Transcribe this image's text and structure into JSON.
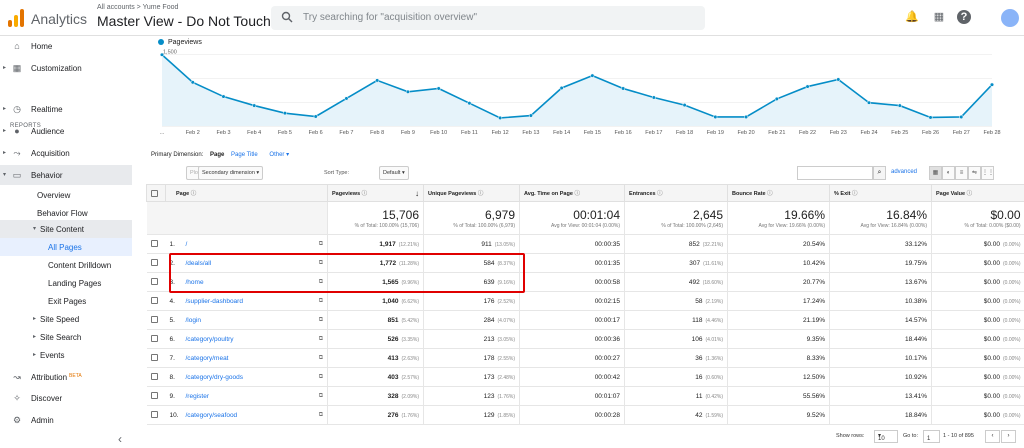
{
  "app": {
    "name": "Analytics",
    "breadcrumb": "All accounts > Yume Food",
    "view_name": "Master View - Do Not Touch"
  },
  "search": {
    "placeholder": "Try searching for \"acquisition overview\""
  },
  "topbar_icons": [
    "bell-icon",
    "apps-grid-icon",
    "help-icon",
    "avatar"
  ],
  "sidebar": {
    "items": [
      {
        "label": "Home",
        "icon": "home-icon"
      },
      {
        "label": "Customization",
        "icon": "customization-icon"
      }
    ],
    "reports_header": "REPORTS",
    "reports": [
      {
        "label": "Realtime",
        "icon": "clock-icon"
      },
      {
        "label": "Audience",
        "icon": "person-icon"
      },
      {
        "label": "Acquisition",
        "icon": "acquisition-icon"
      },
      {
        "label": "Behavior",
        "icon": "behavior-icon"
      }
    ],
    "behavior_children": [
      "Overview",
      "Behavior Flow",
      "Site Content"
    ],
    "site_content_children": [
      "All Pages",
      "Content Drilldown",
      "Landing Pages",
      "Exit Pages"
    ],
    "behavior_more": [
      "Site Speed",
      "Site Search",
      "Events"
    ],
    "bottom": [
      {
        "label": "Attribution",
        "badge": "BETA",
        "icon": "attribution-icon"
      },
      {
        "label": "Discover",
        "icon": "lightbulb-icon"
      },
      {
        "label": "Admin",
        "icon": "gear-icon"
      }
    ],
    "collapse": "‹"
  },
  "chart_data": {
    "type": "line",
    "legend": "Pageviews",
    "x": [
      "Feb 1",
      "Feb 2",
      "Feb 3",
      "Feb 4",
      "Feb 5",
      "Feb 6",
      "Feb 7",
      "Feb 8",
      "Feb 9",
      "Feb 10",
      "Feb 11",
      "Feb 12",
      "Feb 13",
      "Feb 14",
      "Feb 15",
      "Feb 16",
      "Feb 17",
      "Feb 18",
      "Feb 19",
      "Feb 20",
      "Feb 21",
      "Feb 22",
      "Feb 23",
      "Feb 24",
      "Feb 25",
      "Feb 26",
      "Feb 27",
      "Feb 28"
    ],
    "x_tick_labels": [
      "...",
      "Feb 2",
      "Feb 3",
      "Feb 4",
      "Feb 5",
      "Feb 6",
      "Feb 7",
      "Feb 8",
      "Feb 9",
      "Feb 10",
      "Feb 11",
      "Feb 12",
      "Feb 13",
      "Feb 14",
      "Feb 15",
      "Feb 16",
      "Feb 17",
      "Feb 18",
      "Feb 19",
      "Feb 20",
      "Feb 21",
      "Feb 22",
      "Feb 23",
      "Feb 24",
      "Feb 25",
      "Feb 26",
      "Feb 27",
      "Feb 28"
    ],
    "values": [
      1500,
      920,
      620,
      430,
      270,
      200,
      580,
      960,
      720,
      790,
      480,
      170,
      220,
      800,
      1060,
      790,
      600,
      440,
      190,
      190,
      570,
      830,
      980,
      490,
      430,
      180,
      190,
      870
    ],
    "yticks": [
      500,
      1000,
      1500
    ],
    "ytick_labels": [
      "500",
      "1,000",
      "1,500"
    ],
    "ylim": [
      0,
      1600
    ],
    "grid": true,
    "color": "#058dc7"
  },
  "primary_dimension": {
    "label": "Primary Dimension:",
    "options": [
      "Page",
      "Page Title",
      "Other"
    ],
    "selected": "Page"
  },
  "toolbar": {
    "plot_rows": "Plot Rows",
    "secondary_dimension": "Secondary dimension",
    "sort_type_label": "Sort Type:",
    "sort_type_value": "Default",
    "advanced": "advanced"
  },
  "table": {
    "headers": [
      "Page",
      "Pageviews",
      "Unique Pageviews",
      "Avg. Time on Page",
      "Entrances",
      "Bounce Rate",
      "% Exit",
      "Page Value"
    ],
    "totals": [
      {
        "value": "15,706",
        "sub": "% of Total: 100.00% (15,706)"
      },
      {
        "value": "6,979",
        "sub": "% of Total: 100.00% (6,979)"
      },
      {
        "value": "00:01:04",
        "sub": "Avg for View: 00:01:04 (0.00%)"
      },
      {
        "value": "2,645",
        "sub": "% of Total: 100.00% (2,645)"
      },
      {
        "value": "19.66%",
        "sub": "Avg for View: 19.66% (0.00%)"
      },
      {
        "value": "16.84%",
        "sub": "Avg for View: 16.84% (0.00%)"
      },
      {
        "value": "$0.00",
        "sub": "% of Total: 0.00% ($0.00)"
      }
    ],
    "rows": [
      {
        "idx": "1.",
        "page": "/",
        "pv": "1,917",
        "pv_pct": "(12.21%)",
        "upv": "911",
        "upv_pct": "(13.05%)",
        "avg": "00:00:35",
        "ent": "852",
        "ent_pct": "(32.21%)",
        "bounce": "20.54%",
        "exit": "33.12%",
        "val": "$0.00",
        "val_pct": "(0.00%)"
      },
      {
        "idx": "2.",
        "page": "/deals/all",
        "pv": "1,772",
        "pv_pct": "(11.28%)",
        "upv": "584",
        "upv_pct": "(8.37%)",
        "avg": "00:01:35",
        "ent": "307",
        "ent_pct": "(11.61%)",
        "bounce": "10.42%",
        "exit": "19.75%",
        "val": "$0.00",
        "val_pct": "(0.00%)"
      },
      {
        "idx": "3.",
        "page": "/home",
        "pv": "1,565",
        "pv_pct": "(9.96%)",
        "upv": "639",
        "upv_pct": "(9.16%)",
        "avg": "00:00:58",
        "ent": "492",
        "ent_pct": "(18.60%)",
        "bounce": "20.77%",
        "exit": "13.67%",
        "val": "$0.00",
        "val_pct": "(0.00%)"
      },
      {
        "idx": "4.",
        "page": "/supplier-dashboard",
        "pv": "1,040",
        "pv_pct": "(6.62%)",
        "upv": "176",
        "upv_pct": "(2.52%)",
        "avg": "00:02:15",
        "ent": "58",
        "ent_pct": "(2.19%)",
        "bounce": "17.24%",
        "exit": "10.38%",
        "val": "$0.00",
        "val_pct": "(0.00%)"
      },
      {
        "idx": "5.",
        "page": "/login",
        "pv": "851",
        "pv_pct": "(5.42%)",
        "upv": "284",
        "upv_pct": "(4.07%)",
        "avg": "00:00:17",
        "ent": "118",
        "ent_pct": "(4.46%)",
        "bounce": "21.19%",
        "exit": "14.57%",
        "val": "$0.00",
        "val_pct": "(0.00%)"
      },
      {
        "idx": "6.",
        "page": "/category/poultry",
        "pv": "526",
        "pv_pct": "(3.35%)",
        "upv": "213",
        "upv_pct": "(3.05%)",
        "avg": "00:00:36",
        "ent": "106",
        "ent_pct": "(4.01%)",
        "bounce": "9.35%",
        "exit": "18.44%",
        "val": "$0.00",
        "val_pct": "(0.00%)"
      },
      {
        "idx": "7.",
        "page": "/category/meat",
        "pv": "413",
        "pv_pct": "(2.63%)",
        "upv": "178",
        "upv_pct": "(2.55%)",
        "avg": "00:00:27",
        "ent": "36",
        "ent_pct": "(1.36%)",
        "bounce": "8.33%",
        "exit": "10.17%",
        "val": "$0.00",
        "val_pct": "(0.00%)"
      },
      {
        "idx": "8.",
        "page": "/category/dry-goods",
        "pv": "403",
        "pv_pct": "(2.57%)",
        "upv": "173",
        "upv_pct": "(2.48%)",
        "avg": "00:00:42",
        "ent": "16",
        "ent_pct": "(0.60%)",
        "bounce": "12.50%",
        "exit": "10.92%",
        "val": "$0.00",
        "val_pct": "(0.00%)"
      },
      {
        "idx": "9.",
        "page": "/register",
        "pv": "328",
        "pv_pct": "(2.09%)",
        "upv": "123",
        "upv_pct": "(1.76%)",
        "avg": "00:01:07",
        "ent": "11",
        "ent_pct": "(0.42%)",
        "bounce": "55.56%",
        "exit": "13.41%",
        "val": "$0.00",
        "val_pct": "(0.00%)"
      },
      {
        "idx": "10.",
        "page": "/category/seafood",
        "pv": "276",
        "pv_pct": "(1.76%)",
        "upv": "129",
        "upv_pct": "(1.85%)",
        "avg": "00:00:28",
        "ent": "42",
        "ent_pct": "(1.59%)",
        "bounce": "9.52%",
        "exit": "18.84%",
        "val": "$0.00",
        "val_pct": "(0.00%)"
      }
    ]
  },
  "pager": {
    "show_rows_label": "Show rows:",
    "show_rows_value": "10",
    "goto_label": "Go to:",
    "goto_value": "1",
    "range": "1 - 10 of 895",
    "prev": "‹",
    "next": "›"
  },
  "colors": {
    "accent": "#1a73e8",
    "highlight": "#e00000",
    "series": "#058dc7"
  }
}
